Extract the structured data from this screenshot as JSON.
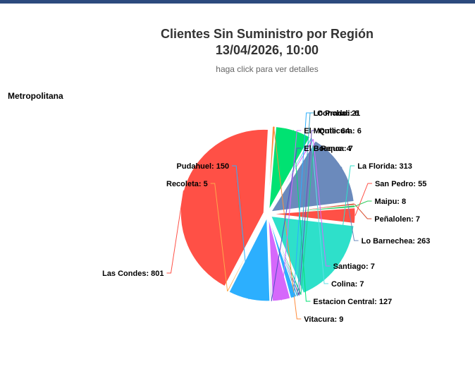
{
  "header": {
    "title_line1": "Clientes Sin Suministro por Región",
    "title_line2": "13/04/2026, 10:00",
    "subtitle": "haga click para ver detalles"
  },
  "region_label": "Metropolitana",
  "colors": {
    "top_bar": "#2c4a7e"
  },
  "chart_data": {
    "type": "pie",
    "categories": [
      "Las Condes",
      "Vitacura",
      "Estacion Central",
      "Colina",
      "Santiago",
      "Lo Barnechea",
      "Peñalolen",
      "Maipu",
      "San Pedro",
      "La Florida",
      "Renca",
      "Quilicura",
      "Conchali",
      "Lo Prado",
      "El Monte",
      "El Bosque",
      "Pudahuel",
      "Recoleta"
    ],
    "values": [
      801,
      9,
      127,
      7,
      7,
      263,
      7,
      8,
      55,
      313,
      7,
      6,
      6,
      21,
      64,
      4,
      150,
      5
    ],
    "colors": [
      "#ff5046",
      "#ff8c3c",
      "#00e272",
      "#5ce1e6",
      "#d568fb",
      "#6b8abc",
      "#d84d2c",
      "#2ccb5a",
      "#ff5046",
      "#2ee0ca",
      "#1fcf8a",
      "#6b4fb5",
      "#3aa0c8",
      "#2caffe",
      "#d568fb",
      "#544fc5",
      "#2caffe",
      "#fea84c"
    ],
    "label_format": "{name}: {value}",
    "legend": "none"
  }
}
